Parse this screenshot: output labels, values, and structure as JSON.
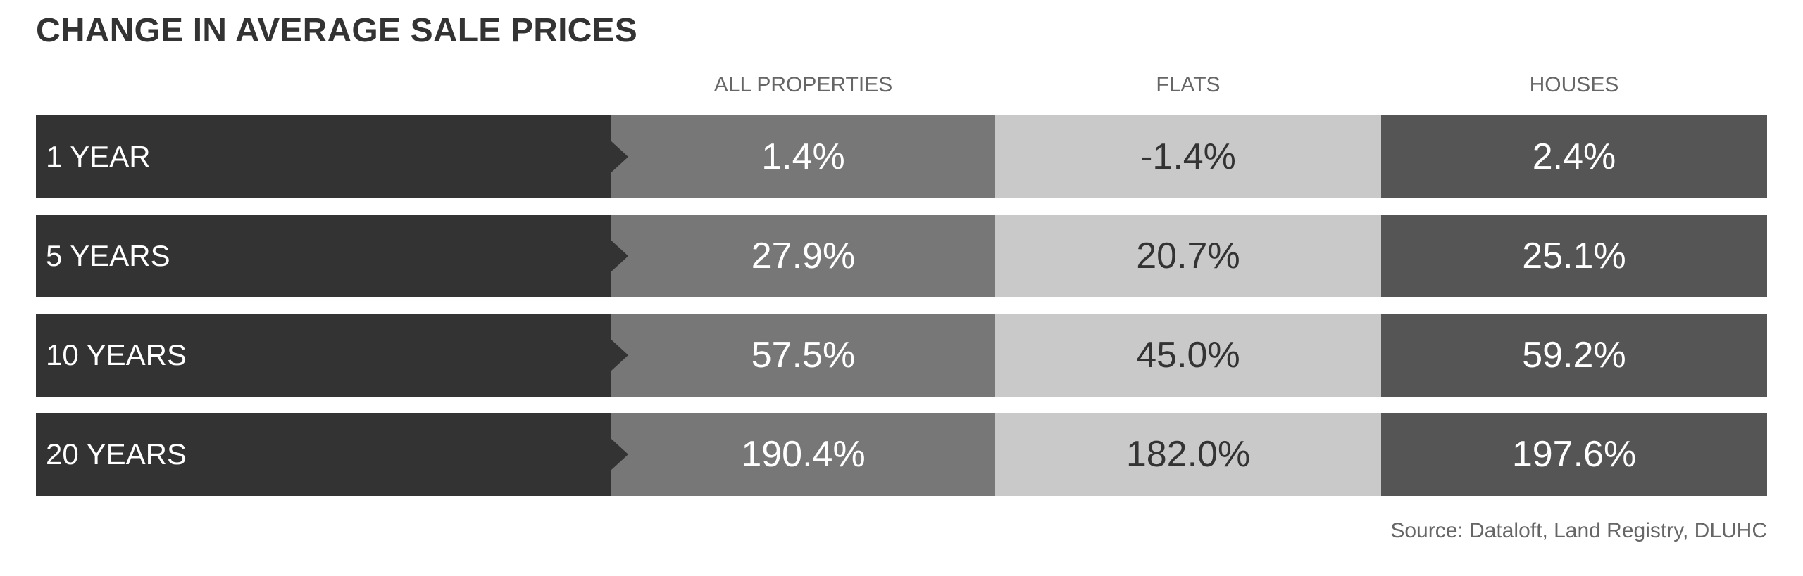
{
  "chart_data": {
    "type": "table",
    "title": "CHANGE IN AVERAGE SALE PRICES",
    "columns": [
      "ALL PROPERTIES",
      "FLATS",
      "HOUSES"
    ],
    "rows": [
      {
        "label": "1 YEAR",
        "values": [
          "1.4%",
          "-1.4%",
          "2.4%"
        ]
      },
      {
        "label": "5 YEARS",
        "values": [
          "27.9%",
          "20.7%",
          "25.1%"
        ]
      },
      {
        "label": "10 YEARS",
        "values": [
          "57.5%",
          "45.0%",
          "59.2%"
        ]
      },
      {
        "label": "20 YEARS",
        "values": [
          "190.4%",
          "182.0%",
          "197.6%"
        ]
      }
    ],
    "source": "Source: Dataloft, Land Registry, DLUHC"
  },
  "colors": {
    "label_bg": "#333333",
    "all_properties_bg": "#777777",
    "flats_bg": "#c9c9c9",
    "houses_bg": "#555555"
  }
}
